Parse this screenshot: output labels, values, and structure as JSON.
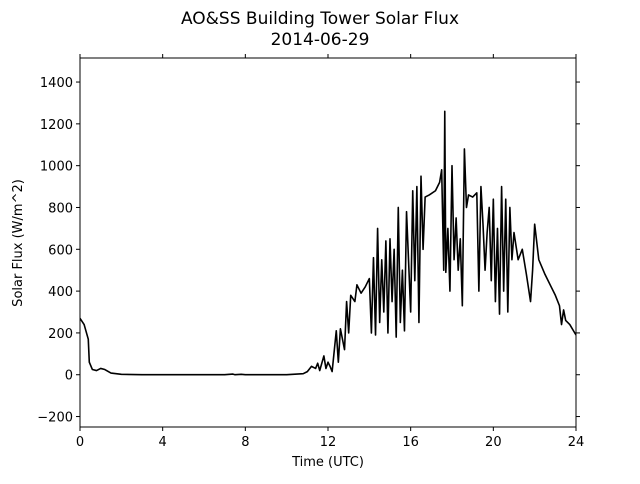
{
  "chart_data": {
    "type": "line",
    "title": "AO&SS Building Tower Solar Flux",
    "subtitle": "2014-06-29",
    "xlabel": "Time (UTC)",
    "ylabel": "Solar Flux (W/m^2)",
    "xlim": [
      0,
      24
    ],
    "xticks": [
      0,
      4,
      8,
      12,
      16,
      20,
      24
    ],
    "ylim": [
      -250,
      1515
    ],
    "yticks": [
      {
        "value": -200,
        "label": "−200"
      },
      0,
      200,
      400,
      600,
      800,
      1000,
      1200,
      1400
    ],
    "grid": false,
    "series": [
      {
        "name": "Solar Flux",
        "color": "#000000",
        "x": [
          0,
          0.2,
          0.4,
          0.45,
          0.6,
          0.8,
          1.0,
          1.2,
          1.5,
          2,
          3,
          5,
          7,
          7.4,
          7.5,
          7.8,
          8,
          10,
          10.8,
          11,
          11.2,
          11.4,
          11.5,
          11.6,
          11.8,
          11.9,
          12,
          12.1,
          12.2,
          12.4,
          12.5,
          12.6,
          12.8,
          12.9,
          13,
          13.1,
          13.3,
          13.4,
          13.6,
          13.8,
          14,
          14.1,
          14.2,
          14.3,
          14.4,
          14.5,
          14.6,
          14.7,
          14.8,
          14.9,
          15,
          15.1,
          15.2,
          15.3,
          15.4,
          15.5,
          15.6,
          15.7,
          15.8,
          16,
          16.1,
          16.2,
          16.3,
          16.4,
          16.5,
          16.6,
          16.7,
          16.9,
          17.2,
          17.4,
          17.5,
          17.6,
          17.65,
          17.7,
          17.8,
          17.9,
          18,
          18.1,
          18.2,
          18.3,
          18.4,
          18.5,
          18.6,
          18.7,
          18.8,
          19,
          19.2,
          19.3,
          19.4,
          19.5,
          19.6,
          19.7,
          19.8,
          19.9,
          20,
          20.1,
          20.2,
          20.3,
          20.4,
          20.5,
          20.6,
          20.7,
          20.8,
          20.9,
          21,
          21.2,
          21.4,
          21.6,
          21.8,
          21.9,
          22,
          22.2,
          22.5,
          22.8,
          23,
          23.2,
          23.3,
          23.4,
          23.5,
          23.7,
          24
        ],
        "values": [
          270,
          240,
          170,
          60,
          25,
          20,
          30,
          25,
          8,
          2,
          0,
          0,
          0,
          3,
          0,
          2,
          0,
          0,
          5,
          15,
          40,
          30,
          55,
          20,
          90,
          30,
          60,
          40,
          15,
          210,
          60,
          220,
          120,
          350,
          200,
          380,
          350,
          430,
          390,
          420,
          460,
          200,
          560,
          190,
          700,
          250,
          550,
          300,
          640,
          200,
          650,
          350,
          600,
          180,
          800,
          250,
          500,
          210,
          780,
          300,
          880,
          450,
          900,
          250,
          950,
          600,
          850,
          860,
          880,
          920,
          980,
          500,
          1260,
          490,
          700,
          400,
          1000,
          550,
          750,
          500,
          650,
          330,
          1080,
          800,
          860,
          850,
          870,
          400,
          900,
          720,
          500,
          680,
          800,
          450,
          840,
          350,
          700,
          290,
          900,
          400,
          840,
          300,
          800,
          550,
          680,
          550,
          600,
          480,
          350,
          500,
          720,
          550,
          480,
          420,
          380,
          330,
          240,
          310,
          260,
          240,
          190
        ]
      }
    ]
  }
}
